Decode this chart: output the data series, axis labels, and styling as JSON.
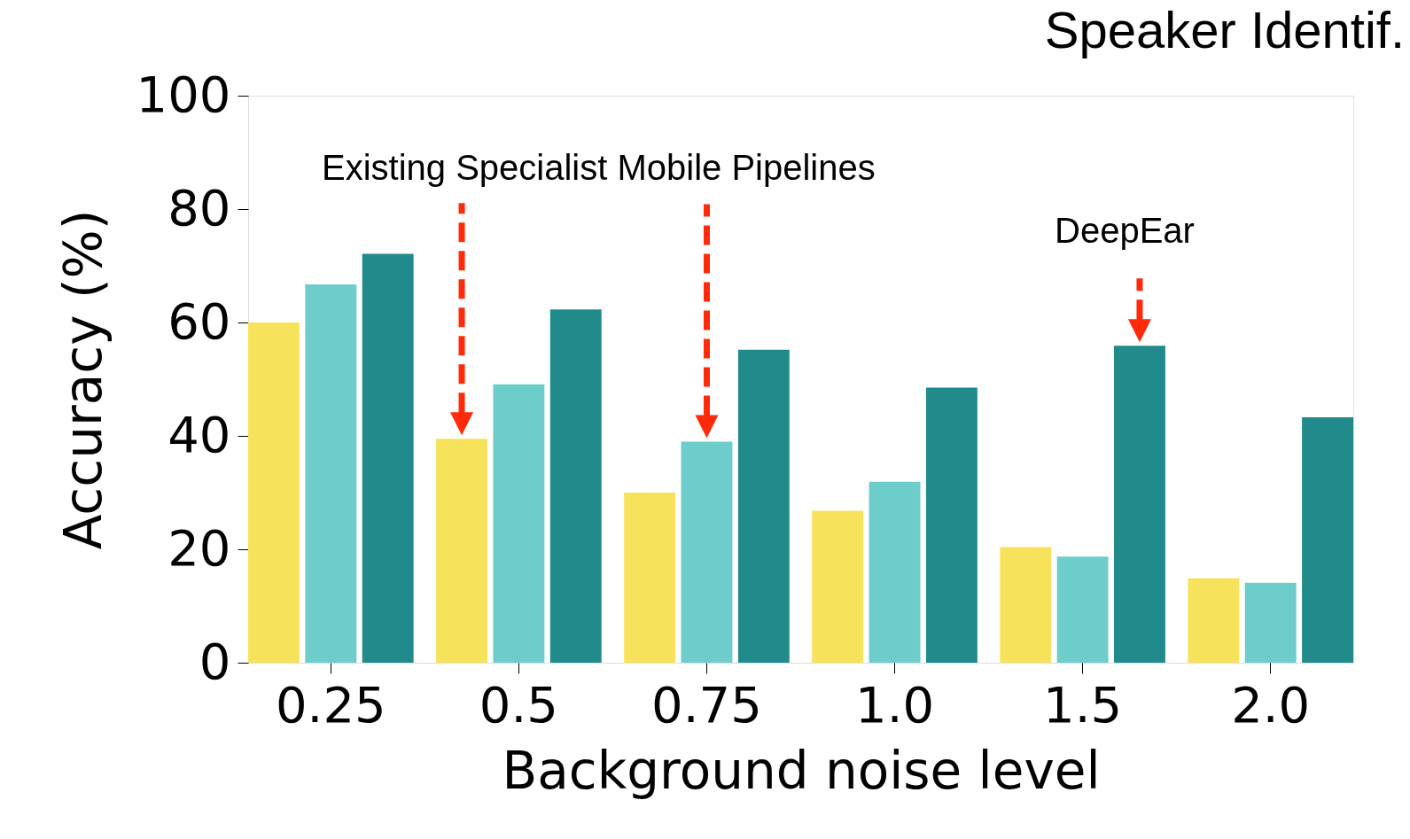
{
  "chart_data": {
    "type": "bar",
    "title": "Speaker Identif.",
    "xlabel": "Background noise level",
    "ylabel": "Accuracy (%)",
    "categories": [
      "0.25",
      "0.5",
      "0.75",
      "1.0",
      "1.5",
      "2.0"
    ],
    "series": [
      {
        "color": "#f7e35b",
        "values": [
          60,
          39.5,
          30,
          26.8,
          20.4,
          14.9
        ]
      },
      {
        "color": "#6dcdca",
        "values": [
          66.7,
          49.1,
          39,
          31.9,
          18.7,
          14.1
        ]
      },
      {
        "color": "#218b8b",
        "values": [
          72.1,
          62.3,
          55.2,
          48.5,
          55.9,
          43.3
        ]
      }
    ],
    "ylim": [
      0,
      100
    ],
    "yticks": [
      0,
      20,
      40,
      60,
      80,
      100
    ],
    "grid": false,
    "legend": false,
    "annotations": [
      "Existing Specialist Mobile Pipelines",
      "DeepEar"
    ]
  }
}
